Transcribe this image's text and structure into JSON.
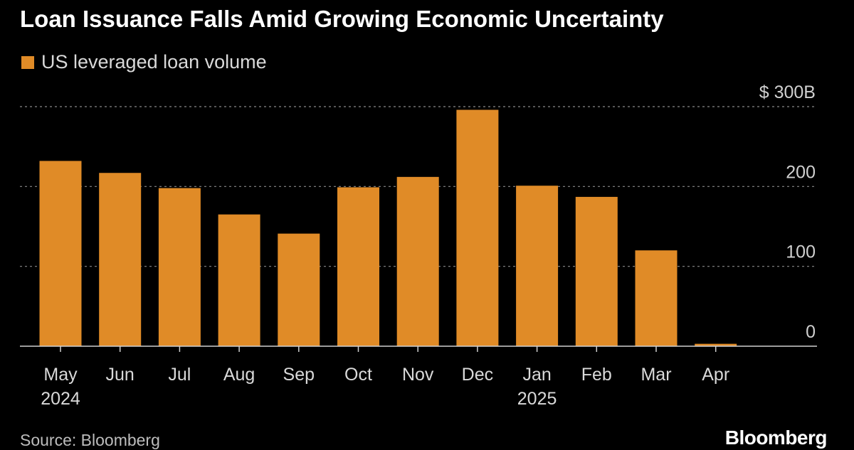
{
  "chart_data": {
    "type": "bar",
    "title": "Loan Issuance Falls Amid Growing Economic Uncertainty",
    "legend": {
      "position": "top-left",
      "entries": [
        "US leveraged loan volume"
      ]
    },
    "categories": [
      "May",
      "Jun",
      "Jul",
      "Aug",
      "Sep",
      "Oct",
      "Nov",
      "Dec",
      "Jan",
      "Feb",
      "Mar",
      "Apr"
    ],
    "year_labels": [
      "2024",
      "",
      "",
      "",
      "",
      "",
      "",
      "",
      "2025",
      "",
      "",
      ""
    ],
    "series": [
      {
        "name": "US leveraged loan volume",
        "values": [
          232,
          217,
          198,
          165,
          141,
          199,
          212,
          296,
          201,
          187,
          120,
          3
        ]
      }
    ],
    "y_ticks": [
      {
        "value": 300,
        "label": "$ 300B"
      },
      {
        "value": 200,
        "label": "200"
      },
      {
        "value": 100,
        "label": "100"
      },
      {
        "value": 0,
        "label": "0"
      }
    ],
    "ylim": [
      0,
      300
    ],
    "grid": true,
    "bar_color": "#E08B27"
  },
  "footer": {
    "source": "Source: Bloomberg",
    "brand": "Bloomberg"
  }
}
